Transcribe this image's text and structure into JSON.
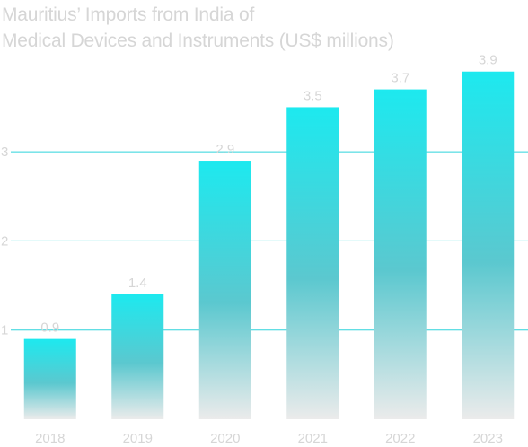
{
  "chart_data": {
    "type": "bar",
    "title_lines": [
      "Mauritius’ Imports from India of",
      "Medical Devices and Instruments (US$ millions)"
    ],
    "categories": [
      "2018",
      "2019",
      "2020",
      "2021",
      "2022",
      "2023"
    ],
    "values": [
      0.9,
      1.4,
      2.9,
      3.5,
      3.7,
      3.9
    ],
    "value_labels": [
      "0.9",
      "1.4",
      "2.9",
      "3.5",
      "3.7",
      "3.9"
    ],
    "y_ticks": [
      1,
      2,
      3
    ],
    "y_tick_labels": [
      "1",
      "2",
      "3"
    ],
    "ylim": [
      0,
      4
    ],
    "grid": true,
    "legend": "none",
    "colors": {
      "bar_top": "#1de9ef",
      "bar_mid": "#5bc8cf",
      "bar_bottom": "#ebebeb",
      "gridline": "#2fd4dc",
      "text": "#d6d6d6"
    }
  }
}
